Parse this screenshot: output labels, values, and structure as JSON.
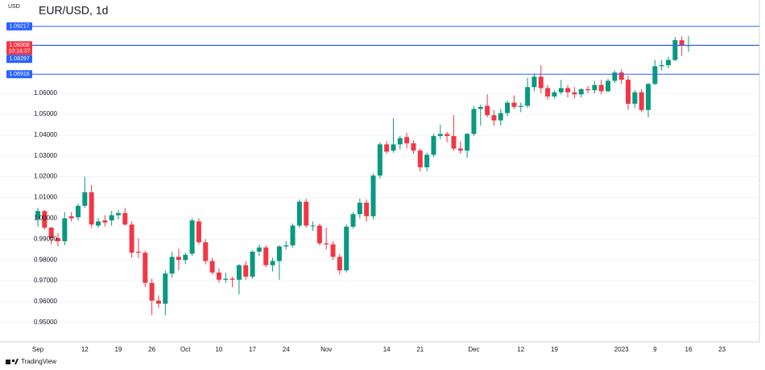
{
  "chart_data": {
    "type": "candlestick",
    "title": "EUR/USD, 1d",
    "currency": "USD",
    "watermark": "TradingView",
    "up_color": "#089981",
    "down_color": "#f23645",
    "grid": true,
    "ylim": [
      0.9407,
      1.1048
    ],
    "yticks": [
      {
        "value": 0.95,
        "label": "0.95000"
      },
      {
        "value": 0.96,
        "label": "0.96000"
      },
      {
        "value": 0.97,
        "label": "0.97000"
      },
      {
        "value": 0.98,
        "label": "0.98000"
      },
      {
        "value": 0.99,
        "label": "0.99000"
      },
      {
        "value": 1.0,
        "label": "1.00000"
      },
      {
        "value": 1.01,
        "label": "1.01000"
      },
      {
        "value": 1.02,
        "label": "1.02000"
      },
      {
        "value": 1.03,
        "label": "1.03000"
      },
      {
        "value": 1.04,
        "label": "1.04000"
      },
      {
        "value": 1.05,
        "label": "1.05000"
      },
      {
        "value": 1.06,
        "label": "1.06000"
      }
    ],
    "categories": [
      "Sep",
      null,
      null,
      null,
      null,
      null,
      null,
      "12",
      null,
      null,
      null,
      null,
      "19",
      null,
      null,
      null,
      null,
      "26",
      null,
      null,
      null,
      null,
      "Oct",
      null,
      null,
      null,
      null,
      "10",
      null,
      null,
      null,
      null,
      "17",
      null,
      null,
      null,
      null,
      "24",
      null,
      null,
      null,
      null,
      null,
      "Nov",
      null,
      null,
      null,
      null,
      null,
      null,
      null,
      null,
      "14",
      null,
      null,
      null,
      null,
      "21",
      null,
      null,
      null,
      null,
      null,
      null,
      null,
      "Dec",
      null,
      null,
      null,
      null,
      null,
      null,
      "12",
      null,
      null,
      null,
      null,
      "19",
      null,
      null,
      null,
      null,
      null,
      null,
      null,
      null,
      null,
      "2023",
      null,
      null,
      null,
      null,
      "9",
      null,
      null,
      null,
      null,
      "16",
      null,
      null,
      null,
      null,
      "23"
    ],
    "open": [
      0.9995,
      1.0035,
      0.9955,
      0.9905,
      0.989,
      1.001,
      1.0005,
      1.006,
      1.0125,
      0.9965,
      0.999,
      0.999,
      1.0015,
      1.0025,
      0.997,
      0.984,
      0.9835,
      0.969,
      0.9605,
      0.959,
      0.9735,
      0.9815,
      0.98,
      0.983,
      0.9985,
      0.9885,
      0.9795,
      0.974,
      0.9705,
      0.971,
      0.9705,
      0.9775,
      0.972,
      0.984,
      0.986,
      0.9775,
      0.9795,
      0.9865,
      0.987,
      0.9965,
      1.008,
      0.9965,
      0.9965,
      0.988,
      0.9875,
      0.9815,
      0.975,
      0.996,
      1.002,
      1.0075,
      1.001,
      1.0205,
      1.0355,
      1.0325,
      1.0355,
      1.039,
      1.036,
      1.0325,
      1.0245,
      1.0305,
      1.0395,
      1.0405,
      1.0395,
      1.0335,
      1.0325,
      1.0405,
      1.0525,
      1.054,
      1.0495,
      1.047,
      1.0505,
      1.0555,
      1.0535,
      1.054,
      1.063,
      1.068,
      1.0625,
      1.0585,
      1.0605,
      1.0625,
      1.0605,
      1.0595,
      1.062,
      1.0615,
      1.064,
      1.061,
      1.066,
      1.07,
      1.0665,
      1.055,
      1.0605,
      1.052,
      1.0645,
      1.073,
      1.0735,
      1.076,
      1.0855,
      1.083,
      null,
      null,
      null,
      null,
      null
    ],
    "high": [
      1.005,
      1.004,
      0.996,
      0.993,
      1.003,
      1.003,
      1.007,
      1.02,
      1.016,
      1.0,
      1.0015,
      1.0035,
      1.004,
      1.005,
      0.9985,
      0.9905,
      0.9845,
      0.971,
      0.963,
      0.975,
      0.984,
      0.9855,
      0.9835,
      1.0,
      1.0,
      0.99,
      0.981,
      0.976,
      0.974,
      0.972,
      0.978,
      0.9795,
      0.9845,
      0.9875,
      0.987,
      0.981,
      0.987,
      0.989,
      0.9975,
      1.009,
      1.0095,
      0.9985,
      0.9975,
      0.9955,
      0.989,
      0.983,
      0.997,
      1.003,
      1.0095,
      1.009,
      1.0215,
      1.0365,
      1.037,
      1.048,
      1.0395,
      1.041,
      1.0375,
      1.0335,
      1.0315,
      1.0405,
      1.045,
      1.0415,
      1.0495,
      1.037,
      1.041,
      1.054,
      1.0545,
      1.0595,
      1.052,
      1.0525,
      1.0565,
      1.059,
      1.0555,
      1.0675,
      1.0695,
      1.0735,
      1.064,
      1.0615,
      1.0665,
      1.064,
      1.063,
      1.0625,
      1.0635,
      1.066,
      1.0665,
      1.067,
      1.071,
      1.0715,
      1.0685,
      1.0615,
      1.062,
      1.065,
      1.076,
      1.076,
      1.0775,
      1.087,
      1.0875,
      1.0875,
      null,
      null,
      null,
      null,
      null
    ],
    "low": [
      0.996,
      0.9945,
      0.9875,
      0.9865,
      0.987,
      0.9985,
      0.999,
      1.005,
      0.9955,
      0.9955,
      0.996,
      0.9965,
      0.9995,
      0.9965,
      0.981,
      0.981,
      0.967,
      0.9535,
      0.957,
      0.9535,
      0.9715,
      0.975,
      0.978,
      0.982,
      0.9875,
      0.978,
      0.973,
      0.969,
      0.969,
      0.967,
      0.9635,
      0.9705,
      0.971,
      0.982,
      0.9765,
      0.9745,
      0.9705,
      0.985,
      0.986,
      0.9955,
      0.9955,
      0.994,
      0.987,
      0.985,
      0.98,
      0.973,
      0.974,
      0.995,
      1.0,
      0.9985,
      0.9995,
      1.019,
      1.031,
      1.0315,
      1.033,
      1.0335,
      1.031,
      1.0225,
      1.0225,
      1.0295,
      1.038,
      1.0365,
      1.0325,
      1.031,
      1.029,
      1.0395,
      1.0445,
      1.0485,
      1.0445,
      1.0445,
      1.049,
      1.0525,
      1.051,
      1.053,
      1.061,
      1.06,
      1.057,
      1.0575,
      1.0595,
      1.058,
      1.0575,
      1.058,
      1.06,
      1.06,
      1.0595,
      1.0605,
      1.065,
      1.0645,
      1.052,
      1.053,
      1.051,
      1.0485,
      1.064,
      1.071,
      1.072,
      1.0755,
      1.078,
      1.08,
      null,
      null,
      null,
      null,
      null
    ],
    "close": [
      1.0035,
      0.9955,
      0.9905,
      0.989,
      1.0,
      1.0,
      1.006,
      1.0125,
      0.997,
      0.9985,
      0.998,
      1.0015,
      1.0025,
      0.997,
      0.9835,
      0.9835,
      0.969,
      0.9605,
      0.959,
      0.9735,
      0.9815,
      0.98,
      0.9825,
      0.999,
      0.9885,
      0.9795,
      0.974,
      0.9705,
      0.971,
      0.9705,
      0.9775,
      0.972,
      0.984,
      0.986,
      0.9775,
      0.9795,
      0.9865,
      0.987,
      0.9965,
      1.008,
      0.9965,
      0.9965,
      0.988,
      0.9875,
      0.9815,
      0.975,
      0.996,
      1.002,
      1.0075,
      1.001,
      1.0205,
      1.0355,
      1.032,
      1.0355,
      1.0385,
      1.036,
      1.0325,
      1.0245,
      1.0305,
      1.0395,
      1.0405,
      1.0395,
      1.0335,
      1.0325,
      1.0405,
      1.0525,
      1.0535,
      1.0495,
      1.047,
      1.0505,
      1.0555,
      1.0535,
      1.054,
      1.063,
      1.068,
      1.0625,
      1.0585,
      1.0605,
      1.0625,
      1.0605,
      1.0595,
      1.062,
      1.0615,
      1.064,
      1.061,
      1.066,
      1.07,
      1.0665,
      1.055,
      1.0605,
      1.052,
      1.0645,
      1.073,
      1.0735,
      1.076,
      1.0855,
      1.083,
      1.08308,
      null,
      null,
      null,
      null,
      null
    ],
    "hlines": [
      {
        "value": 1.09217,
        "label": "1.09217",
        "color": "#2962ff"
      },
      {
        "value": 1.08297,
        "label": "1.08297",
        "color": "#2962ff"
      },
      {
        "value": 1.06916,
        "label": "1.06916",
        "color": "#2962ff"
      }
    ],
    "last_price": {
      "value": 1.08308,
      "label": "1.08308",
      "countdown": "10:14:37",
      "color": "#f23645",
      "line_color": "#5d6b8a"
    }
  }
}
